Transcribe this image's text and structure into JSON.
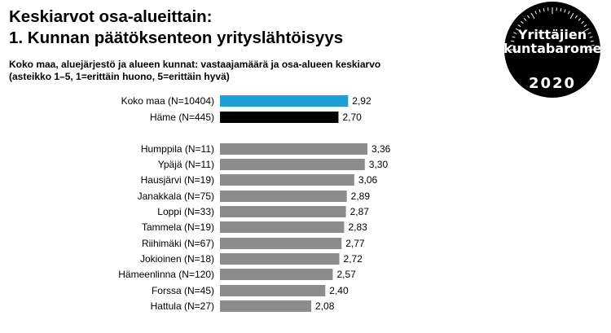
{
  "header": {
    "title_line1": "Keskiarvot osa-alueittain:",
    "title_line2": "1. Kunnan päätöksenteon yrityslähtöisyys",
    "subtitle_line1": "Koko maa, aluejärjestö ja alueen kunnat: vastaajamäärä ja osa-alueen keskiarvo",
    "subtitle_line2": "(asteikko 1–5,  1=erittäin huono, 5=erittäin hyvä)"
  },
  "badge": {
    "line1": "Yrittäjien",
    "line2": "kuntabarometri",
    "year": "2020"
  },
  "colors": {
    "koko_maa": "#1ba1d8",
    "region": "#000000",
    "municipality": "#8c8c8c"
  },
  "chart_data": {
    "type": "bar",
    "orientation": "horizontal",
    "categories": [
      "Koko maa (N=10404)",
      "Häme (N=445)",
      "Humppila (N=11)",
      "Ypäjä (N=11)",
      "Hausjärvi (N=19)",
      "Janakkala (N=75)",
      "Loppi (N=33)",
      "Tammela (N=19)",
      "Riihimäki (N=67)",
      "Jokioinen (N=18)",
      "Hämeenlinna (N=120)",
      "Forssa (N=45)",
      "Hattula (N=27)"
    ],
    "values": [
      2.92,
      2.7,
      3.36,
      3.3,
      3.06,
      2.89,
      2.87,
      2.83,
      2.77,
      2.72,
      2.57,
      2.4,
      2.08
    ],
    "value_labels": [
      "2,92",
      "2,70",
      "3,36",
      "3,30",
      "3,06",
      "2,89",
      "2,87",
      "2,83",
      "2,77",
      "2,72",
      "2,57",
      "2,40",
      "2,08"
    ],
    "groups": [
      "koko_maa",
      "region",
      "municipality",
      "municipality",
      "municipality",
      "municipality",
      "municipality",
      "municipality",
      "municipality",
      "municipality",
      "municipality",
      "municipality",
      "municipality"
    ],
    "xlim": [
      0,
      3.36
    ],
    "grid": false,
    "legend": false
  }
}
